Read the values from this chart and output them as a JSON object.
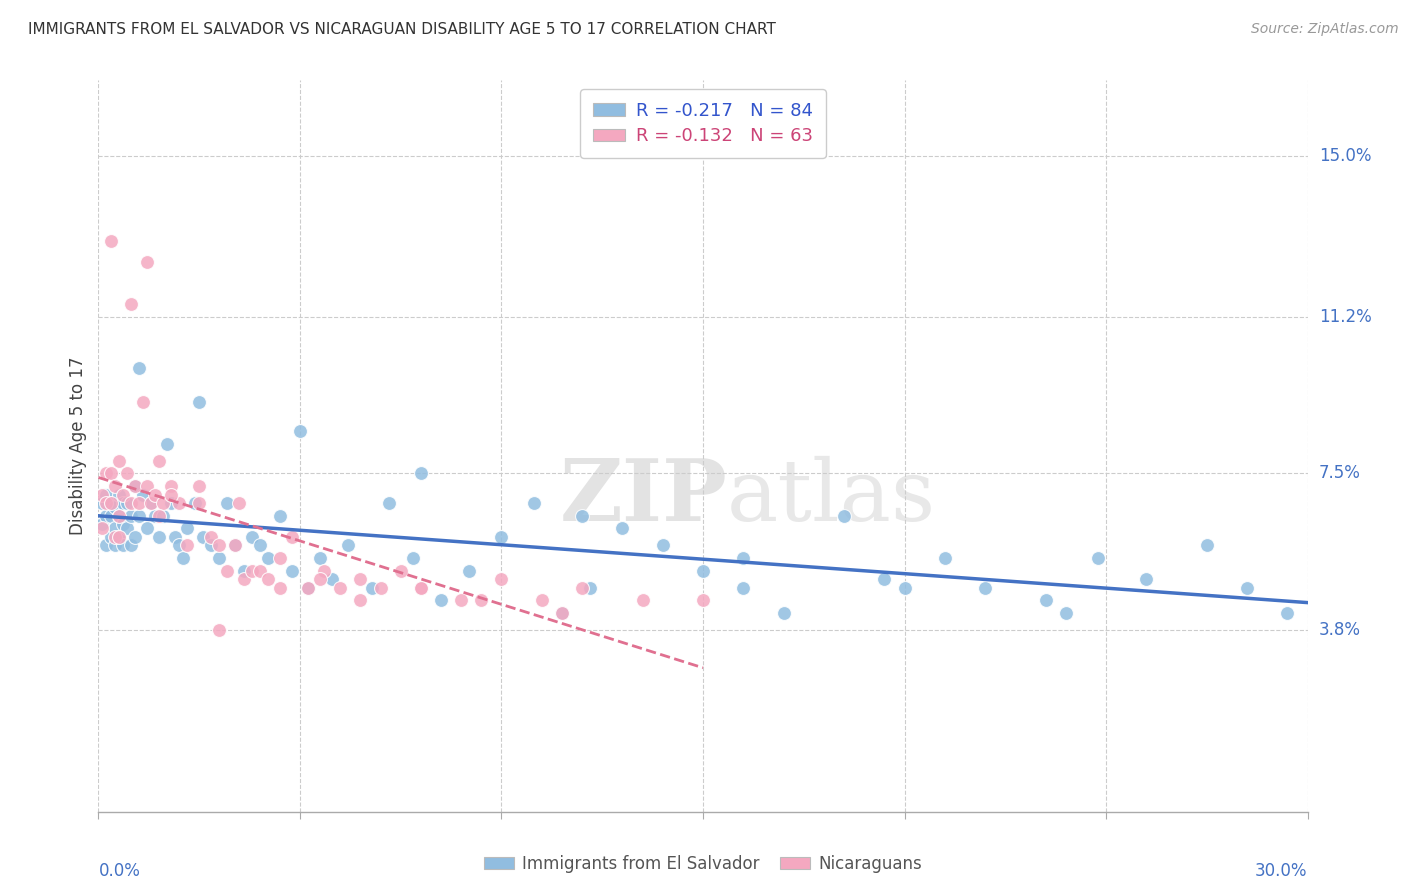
{
  "title": "IMMIGRANTS FROM EL SALVADOR VS NICARAGUAN DISABILITY AGE 5 TO 17 CORRELATION CHART",
  "source": "Source: ZipAtlas.com",
  "ylabel": "Disability Age 5 to 17",
  "ytick_vals": [
    0.038,
    0.075,
    0.112,
    0.15
  ],
  "ytick_labels": [
    "3.8%",
    "7.5%",
    "11.2%",
    "15.0%"
  ],
  "xrange": [
    0.0,
    0.3
  ],
  "yrange": [
    -0.005,
    0.168
  ],
  "legend1_label": "R = -0.217   N = 84",
  "legend2_label": "R = -0.132   N = 63",
  "color_blue": "#91bde0",
  "color_pink": "#f4a8c0",
  "line_color_blue": "#4472c4",
  "line_color_pink": "#e07090",
  "watermark_zip": "ZIP",
  "watermark_atlas": "atlas",
  "legend_bottom_label1": "Immigrants from El Salvador",
  "legend_bottom_label2": "Nicaraguans",
  "grid_color": "#cccccc",
  "xtick_positions": [
    0.0,
    0.05,
    0.1,
    0.15,
    0.2,
    0.25,
    0.3
  ],
  "blue_x": [
    0.001,
    0.001,
    0.002,
    0.002,
    0.002,
    0.003,
    0.003,
    0.003,
    0.004,
    0.004,
    0.004,
    0.005,
    0.005,
    0.005,
    0.006,
    0.006,
    0.006,
    0.007,
    0.007,
    0.008,
    0.008,
    0.009,
    0.009,
    0.01,
    0.011,
    0.012,
    0.013,
    0.014,
    0.015,
    0.016,
    0.017,
    0.018,
    0.019,
    0.02,
    0.021,
    0.022,
    0.024,
    0.026,
    0.028,
    0.03,
    0.032,
    0.034,
    0.036,
    0.038,
    0.04,
    0.042,
    0.045,
    0.048,
    0.052,
    0.055,
    0.058,
    0.062,
    0.068,
    0.072,
    0.078,
    0.085,
    0.092,
    0.1,
    0.108,
    0.115,
    0.122,
    0.13,
    0.14,
    0.15,
    0.16,
    0.17,
    0.185,
    0.195,
    0.21,
    0.22,
    0.235,
    0.248,
    0.26,
    0.275,
    0.285,
    0.295,
    0.01,
    0.025,
    0.05,
    0.08,
    0.12,
    0.16,
    0.2,
    0.24
  ],
  "blue_y": [
    0.063,
    0.068,
    0.058,
    0.065,
    0.07,
    0.06,
    0.065,
    0.068,
    0.058,
    0.062,
    0.067,
    0.06,
    0.065,
    0.07,
    0.058,
    0.063,
    0.068,
    0.062,
    0.068,
    0.058,
    0.065,
    0.06,
    0.072,
    0.065,
    0.07,
    0.062,
    0.068,
    0.065,
    0.06,
    0.065,
    0.082,
    0.068,
    0.06,
    0.058,
    0.055,
    0.062,
    0.068,
    0.06,
    0.058,
    0.055,
    0.068,
    0.058,
    0.052,
    0.06,
    0.058,
    0.055,
    0.065,
    0.052,
    0.048,
    0.055,
    0.05,
    0.058,
    0.048,
    0.068,
    0.055,
    0.045,
    0.052,
    0.06,
    0.068,
    0.042,
    0.048,
    0.062,
    0.058,
    0.052,
    0.048,
    0.042,
    0.065,
    0.05,
    0.055,
    0.048,
    0.045,
    0.055,
    0.05,
    0.058,
    0.048,
    0.042,
    0.1,
    0.092,
    0.085,
    0.075,
    0.065,
    0.055,
    0.048,
    0.042
  ],
  "pink_x": [
    0.001,
    0.001,
    0.002,
    0.002,
    0.003,
    0.003,
    0.004,
    0.004,
    0.005,
    0.005,
    0.006,
    0.007,
    0.008,
    0.009,
    0.01,
    0.011,
    0.012,
    0.013,
    0.014,
    0.015,
    0.016,
    0.018,
    0.02,
    0.022,
    0.025,
    0.028,
    0.03,
    0.032,
    0.034,
    0.036,
    0.038,
    0.04,
    0.042,
    0.045,
    0.048,
    0.052,
    0.056,
    0.06,
    0.065,
    0.07,
    0.075,
    0.08,
    0.09,
    0.1,
    0.11,
    0.12,
    0.135,
    0.15,
    0.003,
    0.008,
    0.012,
    0.018,
    0.025,
    0.035,
    0.045,
    0.055,
    0.065,
    0.08,
    0.095,
    0.115,
    0.005,
    0.015,
    0.03
  ],
  "pink_y": [
    0.062,
    0.07,
    0.068,
    0.075,
    0.068,
    0.075,
    0.06,
    0.072,
    0.065,
    0.078,
    0.07,
    0.075,
    0.068,
    0.072,
    0.068,
    0.092,
    0.072,
    0.068,
    0.07,
    0.078,
    0.068,
    0.072,
    0.068,
    0.058,
    0.068,
    0.06,
    0.058,
    0.052,
    0.058,
    0.05,
    0.052,
    0.052,
    0.05,
    0.055,
    0.06,
    0.048,
    0.052,
    0.048,
    0.05,
    0.048,
    0.052,
    0.048,
    0.045,
    0.05,
    0.045,
    0.048,
    0.045,
    0.045,
    0.13,
    0.115,
    0.125,
    0.07,
    0.072,
    0.068,
    0.048,
    0.05,
    0.045,
    0.048,
    0.045,
    0.042,
    0.06,
    0.065,
    0.038
  ]
}
